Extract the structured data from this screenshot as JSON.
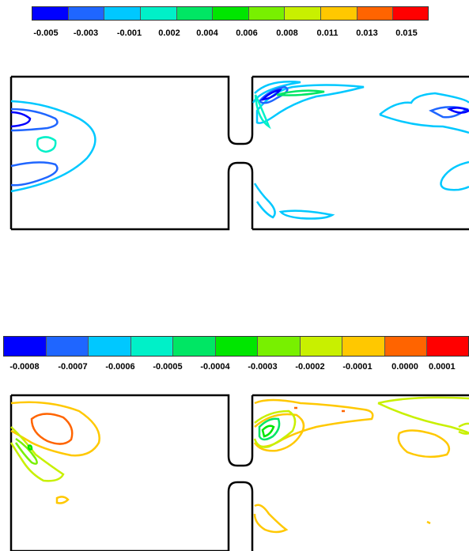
{
  "top_panel": {
    "colorbar": {
      "colors": [
        "#0000ff",
        "#1f66ff",
        "#00c8ff",
        "#00f0c8",
        "#00e664",
        "#00e600",
        "#78f000",
        "#c8f000",
        "#ffc800",
        "#ff6400",
        "#ff0000"
      ],
      "tick_labels": [
        "-0.005",
        "-0.003",
        "-0.001",
        "0.002",
        "0.004",
        "0.006",
        "0.008",
        "0.011",
        "0.013",
        "0.015"
      ]
    }
  },
  "bottom_panel": {
    "colorbar": {
      "colors": [
        "#0000ff",
        "#1f66ff",
        "#00c8ff",
        "#00f0c8",
        "#00e664",
        "#00e600",
        "#78f000",
        "#c8f000",
        "#ffc800",
        "#ff6400",
        "#ff0000"
      ],
      "tick_labels": [
        "-0.0008",
        "-0.0007",
        "-0.0006",
        "-0.0005",
        "-0.0004",
        "-0.0003",
        "-0.0002",
        "-0.0001",
        "0.0000",
        "0.0001"
      ]
    }
  }
}
